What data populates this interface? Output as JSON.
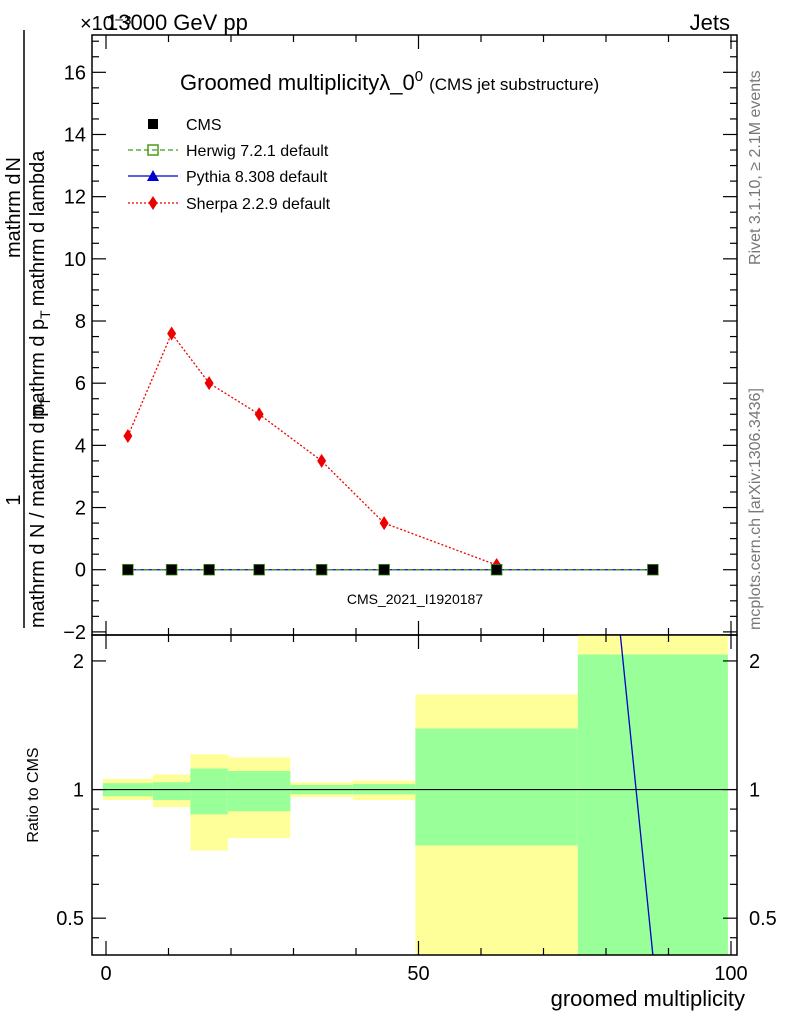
{
  "header": {
    "energy_label": "13000 GeV pp",
    "exponent_label": "×10⁻³",
    "process_label": "Jets"
  },
  "side_labels": {
    "rivet": "Rivet 3.1.10, ≥ 2.1M events",
    "mcplots": "mcplots.cern.ch [arXiv:1306.3436]"
  },
  "chart_data": [
    {
      "type": "line",
      "panel": "main",
      "title_main": "Groomed multiplicityλ_0",
      "title_sup": "0",
      "title_sub": "(CMS jet substructure)",
      "ylabel_numerator": "1",
      "ylabel_denominator": "mathrm d N / mathrm d p",
      "ylabel_denominator_tail": "mathrm d p",
      "ylabel_upper": "mathrm d",
      "ylabel_upper2": "N",
      "ylabel_upper3": "mathrm d p",
      "ylabel_upper4": "mathrm d lambda",
      "ylabel_sub": "T",
      "ylabel_full": "1/(mathrm dN/mathrm dp_T) · mathrm d²N/(mathrm dp_T mathrm dλ)",
      "xlim": [
        -2,
        100
      ],
      "ylim": [
        -2.1,
        17.2
      ],
      "yticks": [
        -2,
        0,
        2,
        4,
        6,
        8,
        10,
        12,
        14,
        16
      ],
      "analysis_label": "CMS_2021_I1920187",
      "x": [
        3.5,
        10.5,
        16.5,
        24.5,
        34.5,
        44.5,
        62.5,
        87.5
      ],
      "series": [
        {
          "name": "CMS",
          "marker": "filled-square",
          "color": "#000000",
          "values": [
            0,
            0,
            0,
            0,
            0,
            0,
            0,
            0
          ]
        },
        {
          "name": "Herwig 7.2.1 default",
          "marker": "open-square",
          "color": "#4a9a1c",
          "dash": "dashed",
          "values": [
            0,
            0,
            0,
            0,
            0,
            0,
            0,
            0
          ]
        },
        {
          "name": "Pythia 8.308 default",
          "marker": "filled-triangle",
          "color": "#0000cc",
          "dash": "solid",
          "values": [
            0,
            0,
            0,
            0,
            0,
            0,
            0,
            0
          ]
        },
        {
          "name": "Sherpa 2.2.9 default",
          "marker": "filled-diamond",
          "color": "#ee0000",
          "dash": "dotted",
          "values": [
            4.3,
            7.6,
            6.0,
            5.0,
            3.5,
            1.5,
            0.15,
            null
          ]
        }
      ]
    },
    {
      "type": "area",
      "panel": "ratio",
      "ylabel": "Ratio to CMS",
      "xlabel": "groomed multiplicity",
      "xticks": [
        0,
        50,
        100
      ],
      "yticks": [
        0.5,
        1,
        2
      ],
      "ylim": [
        0.41,
        2.3
      ],
      "bins": [
        {
          "lo": -0.5,
          "hi": 7.5,
          "inner": [
            0.965,
            1.035
          ],
          "outer": [
            0.945,
            1.06
          ]
        },
        {
          "lo": 7.5,
          "hi": 13.5,
          "inner": [
            0.945,
            1.04
          ],
          "outer": [
            0.91,
            1.085
          ]
        },
        {
          "lo": 13.5,
          "hi": 19.5,
          "inner": [
            0.875,
            1.12
          ],
          "outer": [
            0.72,
            1.21
          ]
        },
        {
          "lo": 19.5,
          "hi": 29.5,
          "inner": [
            0.89,
            1.105
          ],
          "outer": [
            0.77,
            1.19
          ]
        },
        {
          "lo": 29.5,
          "hi": 39.5,
          "inner": [
            0.975,
            1.025
          ],
          "outer": [
            0.96,
            1.04
          ]
        },
        {
          "lo": 39.5,
          "hi": 49.5,
          "inner": [
            0.975,
            1.03
          ],
          "outer": [
            0.945,
            1.05
          ]
        },
        {
          "lo": 49.5,
          "hi": 75.5,
          "inner": [
            0.74,
            1.39
          ],
          "outer": [
            0.41,
            1.67
          ]
        },
        {
          "lo": 75.5,
          "hi": 99.5,
          "inner": [
            0.41,
            2.07
          ],
          "outer": [
            0.41,
            2.3
          ]
        }
      ],
      "pythia_line": {
        "x": [
          82.3,
          87.5
        ],
        "y": [
          2.3,
          0.41
        ],
        "color": "#0000cc"
      },
      "reference_line": 1
    }
  ]
}
